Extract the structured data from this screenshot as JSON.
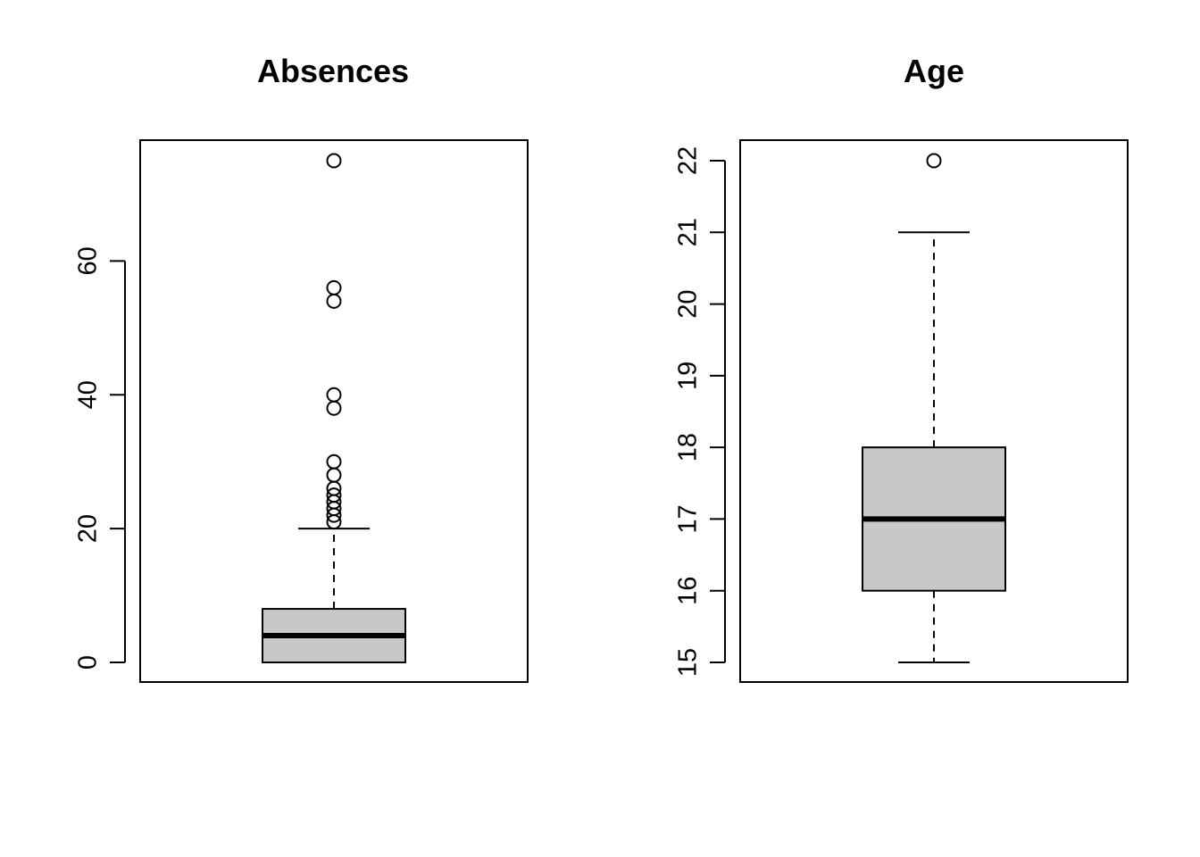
{
  "chart_data": [
    {
      "type": "boxplot",
      "title": "Absences",
      "xlabel": "",
      "ylabel": "",
      "ylim": [
        0,
        75
      ],
      "yticks": [
        0,
        20,
        40,
        60
      ],
      "tick_labels": [
        "0",
        "20",
        "40",
        "60"
      ],
      "grid": false,
      "box": {
        "whisker_low": 0,
        "q1": 0,
        "median": 4,
        "q3": 8,
        "whisker_high": 20
      },
      "outliers": [
        21,
        22,
        23,
        24,
        25,
        26,
        28,
        30,
        38,
        40,
        54,
        56,
        75
      ],
      "colors": {
        "box_fill": "#c8c8c8",
        "stroke": "#000000"
      }
    },
    {
      "type": "boxplot",
      "title": "Age",
      "xlabel": "",
      "ylabel": "",
      "ylim": [
        15,
        22
      ],
      "yticks": [
        15,
        16,
        17,
        18,
        19,
        20,
        21,
        22
      ],
      "tick_labels": [
        "15",
        "16",
        "17",
        "18",
        "19",
        "20",
        "21",
        "22"
      ],
      "grid": false,
      "box": {
        "whisker_low": 15,
        "q1": 16,
        "median": 17,
        "q3": 18,
        "whisker_high": 21
      },
      "outliers": [
        22
      ],
      "colors": {
        "box_fill": "#c8c8c8",
        "stroke": "#000000"
      }
    }
  ]
}
